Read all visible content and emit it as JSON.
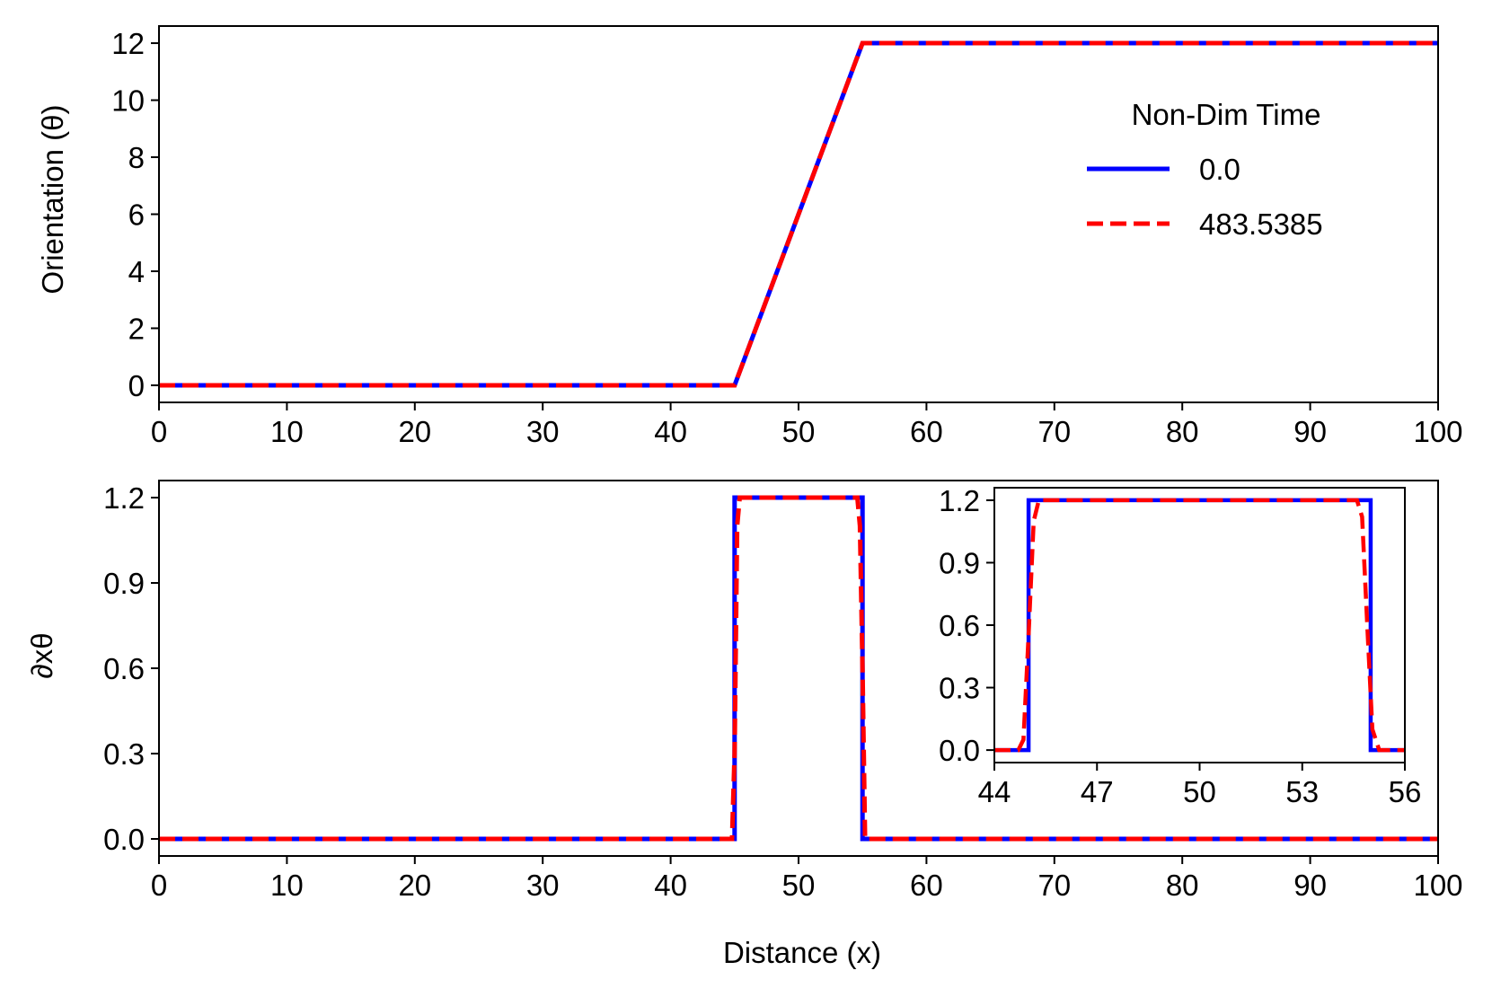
{
  "chart_data": [
    {
      "id": "top",
      "type": "line",
      "xlabel": "Distance",
      "ylabel": "Orientation (θ)",
      "xlim": [
        0,
        100
      ],
      "ylim": [
        -0.6,
        12.6
      ],
      "xticks": [
        0,
        10,
        20,
        30,
        40,
        50,
        60,
        70,
        80,
        90,
        100
      ],
      "yticks": [
        0,
        2,
        4,
        6,
        8,
        10,
        12
      ],
      "legend": {
        "title": "Non-Dim Time",
        "placement": "right",
        "entries": [
          "0.0",
          "483.5385"
        ]
      },
      "series": [
        {
          "name": "0.0",
          "color": "#0000ff",
          "style": "solid",
          "x": [
            0,
            45,
            55,
            100
          ],
          "y": [
            0,
            0,
            12,
            12
          ]
        },
        {
          "name": "483.5385",
          "color": "#ff0000",
          "style": "dashed",
          "x": [
            0,
            45,
            55,
            100
          ],
          "y": [
            0,
            0,
            12,
            12
          ]
        }
      ]
    },
    {
      "id": "bottom",
      "type": "line",
      "xlabel": "Distance (x)",
      "ylabel": "∂xθ",
      "xlim": [
        0,
        100
      ],
      "ylim": [
        -0.06,
        1.26
      ],
      "xticks": [
        0,
        10,
        20,
        30,
        40,
        50,
        60,
        70,
        80,
        90,
        100
      ],
      "yticks": [
        0.0,
        0.3,
        0.6,
        0.9,
        1.2
      ],
      "ytick_labels": [
        "0.0",
        "0.3",
        "0.6",
        "0.9",
        "1.2"
      ],
      "series": [
        {
          "name": "0.0",
          "color": "#0000ff",
          "style": "solid",
          "x": [
            0,
            45,
            45,
            55,
            55,
            100
          ],
          "y": [
            0,
            0,
            1.2,
            1.2,
            0,
            0
          ]
        },
        {
          "name": "483.5385",
          "color": "#ff0000",
          "style": "dashed",
          "x": [
            0,
            44.8,
            45.0,
            45.2,
            45.4,
            54.6,
            54.8,
            55.0,
            55.2,
            100
          ],
          "y": [
            0,
            0,
            0.3,
            1.1,
            1.2,
            1.2,
            1.1,
            0.6,
            0,
            0
          ]
        }
      ]
    },
    {
      "id": "inset",
      "type": "line",
      "xlim": [
        44,
        56
      ],
      "ylim": [
        -0.06,
        1.26
      ],
      "xticks": [
        44,
        47,
        50,
        53,
        56
      ],
      "yticks": [
        0.0,
        0.3,
        0.6,
        0.9,
        1.2
      ],
      "ytick_labels": [
        "0.0",
        "0.3",
        "0.6",
        "0.9",
        "1.2"
      ],
      "series": [
        {
          "name": "0.0",
          "color": "#0000ff",
          "style": "solid",
          "x": [
            44,
            45,
            45,
            55,
            55,
            56
          ],
          "y": [
            0,
            0,
            1.2,
            1.2,
            0,
            0
          ]
        },
        {
          "name": "483.5385",
          "color": "#ff0000",
          "style": "dashed",
          "x": [
            44,
            44.7,
            44.85,
            45.0,
            45.15,
            45.3,
            54.6,
            54.75,
            54.9,
            55.05,
            55.25,
            56
          ],
          "y": [
            0,
            0,
            0.05,
            0.55,
            1.1,
            1.2,
            1.2,
            1.12,
            0.6,
            0.1,
            0,
            0
          ]
        }
      ]
    }
  ]
}
